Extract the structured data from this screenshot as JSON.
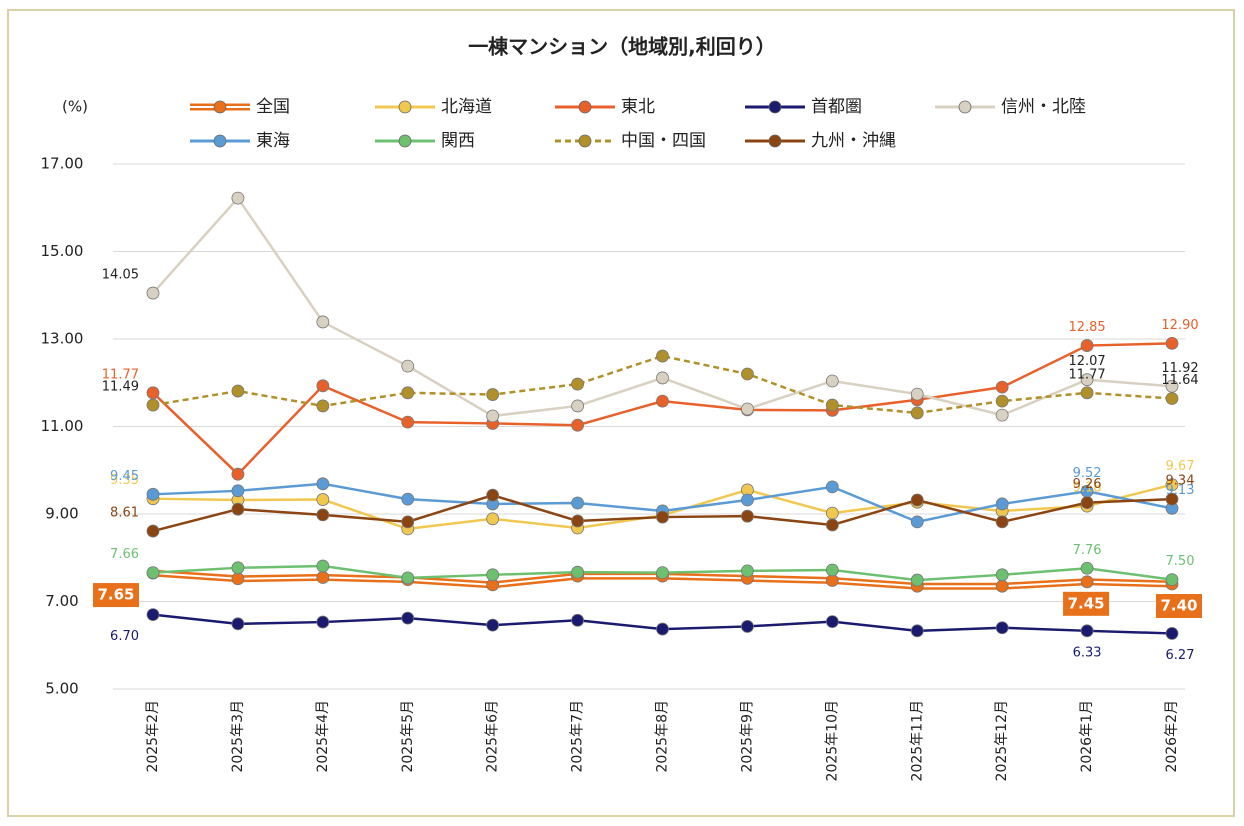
{
  "chart_data": {
    "type": "line",
    "title": "一棟マンション（地域別,利回り）",
    "y_label": "(%)",
    "categories": [
      "2025年2月",
      "2025年3月",
      "2025年4月",
      "2025年5月",
      "2025年6月",
      "2025年7月",
      "2025年8月",
      "2025年9月",
      "2025年10月",
      "2025年11月",
      "2025年12月",
      "2026年1月",
      "2026年2月"
    ],
    "ylim": [
      5,
      17
    ],
    "yticks": [
      {
        "value": 5,
        "label": "5.00"
      },
      {
        "value": 7,
        "label": "7.00"
      },
      {
        "value": 9,
        "label": "9.00"
      },
      {
        "value": 11,
        "label": "11.00"
      },
      {
        "value": 13,
        "label": "13.00"
      },
      {
        "value": 15,
        "label": "15.00"
      },
      {
        "value": 17,
        "label": "17.00"
      }
    ],
    "grid": true,
    "series": [
      {
        "name": "全国",
        "color": "#e8701a",
        "style": "double",
        "label_box": true,
        "values": [
          7.65,
          7.52,
          7.55,
          7.5,
          7.38,
          7.58,
          7.58,
          7.53,
          7.48,
          7.35,
          7.35,
          7.45,
          7.4
        ],
        "value_labels": [
          "7.65",
          null,
          null,
          null,
          null,
          null,
          null,
          null,
          null,
          null,
          null,
          "7.45",
          "7.40"
        ]
      },
      {
        "name": "北海道",
        "color": "#f0c850",
        "style": "solid",
        "values": [
          9.35,
          9.32,
          9.33,
          8.66,
          8.89,
          8.68,
          8.97,
          9.55,
          9.02,
          9.27,
          9.07,
          9.18,
          9.67
        ],
        "value_labels": [
          "9.35",
          null,
          null,
          null,
          null,
          null,
          null,
          null,
          null,
          null,
          null,
          "9.18",
          "9.67"
        ]
      },
      {
        "name": "東北",
        "color": "#e8602a",
        "style": "solid",
        "values": [
          11.77,
          9.91,
          11.93,
          11.1,
          11.07,
          11.03,
          11.58,
          11.38,
          11.37,
          11.61,
          11.9,
          12.85,
          12.9
        ],
        "value_labels": [
          "11.77",
          null,
          null,
          null,
          null,
          null,
          null,
          null,
          null,
          null,
          null,
          "12.85",
          "12.90"
        ]
      },
      {
        "name": "首都圏",
        "color": "#1a1a6e",
        "style": "solid",
        "values": [
          6.7,
          6.49,
          6.53,
          6.62,
          6.46,
          6.57,
          6.37,
          6.43,
          6.54,
          6.33,
          6.4,
          6.33,
          6.27
        ],
        "value_labels": [
          "6.70",
          null,
          null,
          null,
          null,
          null,
          null,
          null,
          null,
          null,
          null,
          "6.33",
          "6.27"
        ]
      },
      {
        "name": "信州・北陸",
        "color": "#d8d0c0",
        "style": "solid",
        "values": [
          14.05,
          16.22,
          13.39,
          12.38,
          11.24,
          11.47,
          12.11,
          11.4,
          12.04,
          11.74,
          11.26,
          12.07,
          11.92
        ],
        "value_labels": [
          "14.05",
          null,
          null,
          null,
          null,
          null,
          null,
          null,
          null,
          null,
          null,
          "12.07",
          "11.92"
        ]
      },
      {
        "name": "東海",
        "color": "#5b9bd5",
        "style": "solid",
        "values": [
          9.45,
          9.53,
          9.69,
          9.34,
          9.23,
          9.25,
          9.07,
          9.32,
          9.62,
          8.82,
          9.23,
          9.52,
          9.13
        ],
        "value_labels": [
          "9.45",
          null,
          null,
          null,
          null,
          null,
          null,
          null,
          null,
          null,
          null,
          "9.52",
          "9.13"
        ]
      },
      {
        "name": "関西",
        "color": "#6cc070",
        "style": "solid",
        "values": [
          7.66,
          7.77,
          7.81,
          7.54,
          7.61,
          7.67,
          7.66,
          7.7,
          7.72,
          7.49,
          7.61,
          7.76,
          7.5
        ],
        "value_labels": [
          "7.66",
          null,
          null,
          null,
          null,
          null,
          null,
          null,
          null,
          null,
          null,
          "7.76",
          "7.50"
        ]
      },
      {
        "name": "中国・四国",
        "color": "#b0902a",
        "style": "dashed",
        "values": [
          11.49,
          11.81,
          11.47,
          11.77,
          11.73,
          11.97,
          12.61,
          12.2,
          11.49,
          11.31,
          11.58,
          11.77,
          11.64
        ],
        "value_labels": [
          "11.49",
          null,
          null,
          null,
          null,
          null,
          null,
          null,
          null,
          null,
          null,
          "11.77",
          "11.64"
        ]
      },
      {
        "name": "九州・沖縄",
        "color": "#8b4513",
        "style": "solid",
        "values": [
          8.61,
          9.11,
          8.98,
          8.82,
          9.43,
          8.84,
          8.93,
          8.95,
          8.75,
          9.32,
          8.82,
          9.26,
          9.34
        ],
        "value_labels": [
          "8.61",
          null,
          null,
          null,
          null,
          null,
          null,
          null,
          null,
          null,
          null,
          "9.26",
          "9.34"
        ]
      }
    ]
  }
}
